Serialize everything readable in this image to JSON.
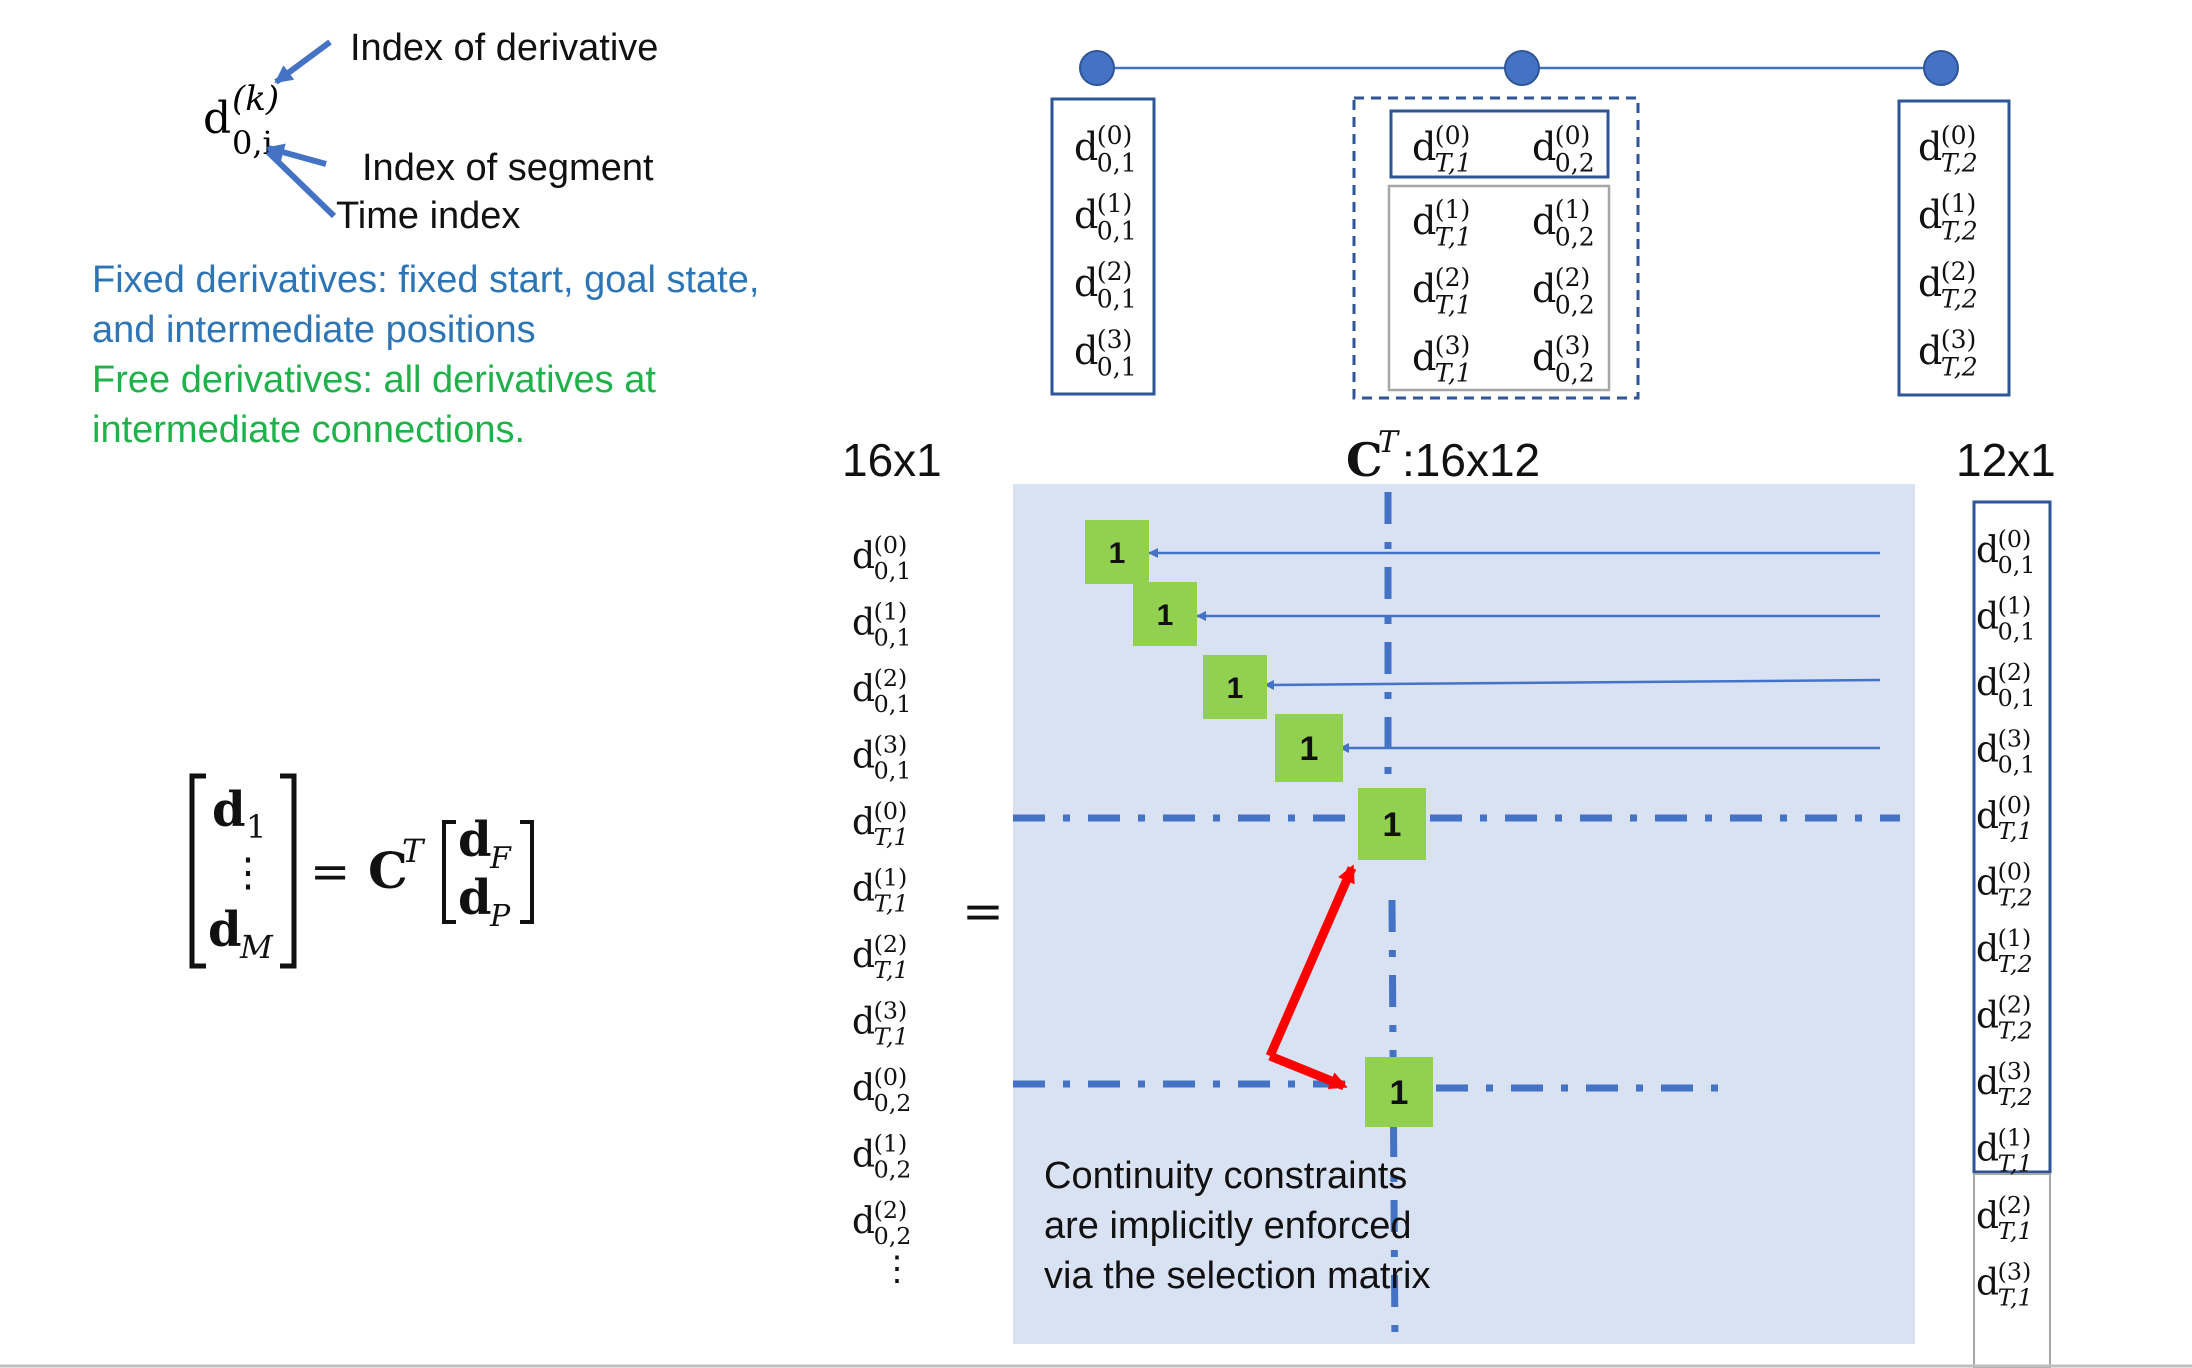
{
  "notation": {
    "symbol": "d",
    "superscript": "(k)",
    "subscript": "0,i",
    "label_derivative": "Index of derivative",
    "label_segment": "Index of segment",
    "label_time": "Time index"
  },
  "description": {
    "fixed_line1": "Fixed derivatives: fixed start, goal state,",
    "fixed_line2": "and intermediate positions",
    "free_line1": "Free derivatives: all derivatives at",
    "free_line2": "intermediate connections."
  },
  "equation": {
    "lhs_top": "d",
    "lhs_top_sub": "1",
    "lhs_dots": "⋮",
    "lhs_bottom": "d",
    "lhs_bottom_sub": "M",
    "equals": "=",
    "matrix": "C",
    "matrix_sup": "T",
    "rhs_top": "d",
    "rhs_top_sub": "F",
    "rhs_bottom": "d",
    "rhs_bottom_sub": "P"
  },
  "segments": {
    "left_box": [
      [
        "(0)",
        "0,1"
      ],
      [
        "(1)",
        "0,1"
      ],
      [
        "(2)",
        "0,1"
      ],
      [
        "(3)",
        "0,1"
      ]
    ],
    "middle_fixed": [
      [
        "(0)",
        "T,1"
      ],
      [
        "(0)",
        "0,2"
      ]
    ],
    "middle_free": [
      [
        "(1)",
        "T,1",
        "(1)",
        "0,2"
      ],
      [
        "(2)",
        "T,1",
        "(2)",
        "0,2"
      ],
      [
        "(3)",
        "T,1",
        "(3)",
        "0,2"
      ]
    ],
    "right_box": [
      [
        "(0)",
        "T,2"
      ],
      [
        "(1)",
        "T,2"
      ],
      [
        "(2)",
        "T,2"
      ],
      [
        "(3)",
        "T,2"
      ]
    ]
  },
  "matrix_labels": {
    "left_size": "16x1",
    "center_symbol": "C",
    "center_sup": "T",
    "center_size": ":16x12",
    "right_size": "12x1",
    "equals": "="
  },
  "left_vector": [
    [
      "(0)",
      "0,1"
    ],
    [
      "(1)",
      "0,1"
    ],
    [
      "(2)",
      "0,1"
    ],
    [
      "(3)",
      "0,1"
    ],
    [
      "(0)",
      "T,1"
    ],
    [
      "(1)",
      "T,1"
    ],
    [
      "(2)",
      "T,1"
    ],
    [
      "(3)",
      "T,1"
    ],
    [
      "(0)",
      "0,2"
    ],
    [
      "(1)",
      "0,2"
    ],
    [
      "(2)",
      "0,2"
    ]
  ],
  "left_vector_dots": "⋮",
  "right_vector_fixed": [
    [
      "(0)",
      "0,1"
    ],
    [
      "(1)",
      "0,1"
    ],
    [
      "(2)",
      "0,1"
    ],
    [
      "(3)",
      "0,1"
    ],
    [
      "(0)",
      "T,1"
    ],
    [
      "(0)",
      "T,2"
    ],
    [
      "(1)",
      "T,2"
    ],
    [
      "(2)",
      "T,2"
    ],
    [
      "(3)",
      "T,2"
    ],
    [
      "(1)",
      "T,1"
    ]
  ],
  "right_vector_free": [
    [
      "(2)",
      "T,1"
    ],
    [
      "(3)",
      "T,1"
    ]
  ],
  "ones": [
    "1",
    "1",
    "1",
    "1",
    "1",
    "1"
  ],
  "note": {
    "line1": "Continuity constraints",
    "line2": "are implicitly enforced",
    "line3": "via the selection matrix"
  },
  "colors": {
    "blue_line": "#4472C4",
    "node": "#4472C4",
    "box_border": "#2F5597",
    "matrix_bg": "#D9E2F3",
    "one_cell": "#92D050",
    "arrow_red": "#FF0000",
    "fixed_text": "#2E75B6",
    "free_text": "#1FB24A"
  }
}
